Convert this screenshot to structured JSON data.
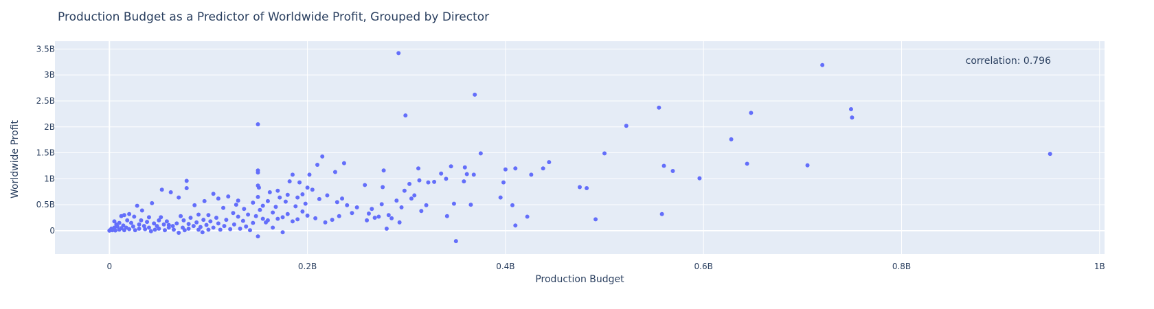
{
  "chart_data": {
    "type": "scatter",
    "title": "Production Budget as a Predictor of Worldwide Profit, Grouped by Director",
    "xlabel": "Production Budget",
    "ylabel": "Worldwide Profit",
    "xlim": [
      -55000000,
      1005000000
    ],
    "ylim": [
      -450000000,
      3650000000
    ],
    "x_ticks": [
      0,
      200000000,
      400000000,
      600000000,
      800000000,
      1000000000
    ],
    "x_tick_labels": [
      "0",
      "0.2B",
      "0.4B",
      "0.6B",
      "0.8B",
      "1B"
    ],
    "y_ticks": [
      0,
      500000000,
      1000000000,
      1500000000,
      2000000000,
      2500000000,
      3000000000,
      3500000000
    ],
    "y_tick_labels": [
      "0",
      "0.5B",
      "1B",
      "1.5B",
      "2B",
      "2.5B",
      "3B",
      "3.5B"
    ],
    "grid": true,
    "annotation": "correlation: 0.796",
    "colors": {
      "marker": "#636efa",
      "plot_bg": "#e5ecf6",
      "grid": "#ffffff",
      "text": "#2a3f5f"
    },
    "series": [
      {
        "points": [
          [
            0,
            2000000
          ],
          [
            1000000,
            15000000
          ],
          [
            2000000,
            40000000
          ],
          [
            3000000,
            10000000
          ],
          [
            4000000,
            30000000
          ],
          [
            5000000,
            60000000
          ],
          [
            5000000,
            180000000
          ],
          [
            6000000,
            5000000
          ],
          [
            7000000,
            120000000
          ],
          [
            8000000,
            80000000
          ],
          [
            10000000,
            20000000
          ],
          [
            10000000,
            150000000
          ],
          [
            12000000,
            280000000
          ],
          [
            12000000,
            50000000
          ],
          [
            14000000,
            100000000
          ],
          [
            15000000,
            300000000
          ],
          [
            15000000,
            10000000
          ],
          [
            17000000,
            60000000
          ],
          [
            18000000,
            200000000
          ],
          [
            20000000,
            30000000
          ],
          [
            20000000,
            320000000
          ],
          [
            22000000,
            150000000
          ],
          [
            24000000,
            80000000
          ],
          [
            25000000,
            270000000
          ],
          [
            26000000,
            10000000
          ],
          [
            28000000,
            480000000
          ],
          [
            30000000,
            120000000
          ],
          [
            30000000,
            40000000
          ],
          [
            32000000,
            200000000
          ],
          [
            33000000,
            390000000
          ],
          [
            35000000,
            90000000
          ],
          [
            36000000,
            30000000
          ],
          [
            38000000,
            170000000
          ],
          [
            40000000,
            260000000
          ],
          [
            40000000,
            60000000
          ],
          [
            42000000,
            -10000000
          ],
          [
            43000000,
            530000000
          ],
          [
            45000000,
            140000000
          ],
          [
            46000000,
            20000000
          ],
          [
            48000000,
            90000000
          ],
          [
            50000000,
            200000000
          ],
          [
            50000000,
            40000000
          ],
          [
            52000000,
            260000000
          ],
          [
            53000000,
            790000000
          ],
          [
            55000000,
            120000000
          ],
          [
            56000000,
            10000000
          ],
          [
            58000000,
            180000000
          ],
          [
            60000000,
            60000000
          ],
          [
            60000000,
            110000000
          ],
          [
            62000000,
            740000000
          ],
          [
            64000000,
            90000000
          ],
          [
            65000000,
            20000000
          ],
          [
            68000000,
            140000000
          ],
          [
            70000000,
            -40000000
          ],
          [
            70000000,
            640000000
          ],
          [
            72000000,
            280000000
          ],
          [
            74000000,
            60000000
          ],
          [
            75000000,
            200000000
          ],
          [
            76000000,
            10000000
          ],
          [
            78000000,
            960000000
          ],
          [
            78000000,
            820000000
          ],
          [
            80000000,
            130000000
          ],
          [
            80000000,
            40000000
          ],
          [
            82000000,
            250000000
          ],
          [
            85000000,
            90000000
          ],
          [
            86000000,
            490000000
          ],
          [
            88000000,
            160000000
          ],
          [
            90000000,
            20000000
          ],
          [
            90000000,
            310000000
          ],
          [
            92000000,
            70000000
          ],
          [
            94000000,
            -30000000
          ],
          [
            95000000,
            210000000
          ],
          [
            96000000,
            570000000
          ],
          [
            98000000,
            110000000
          ],
          [
            100000000,
            20000000
          ],
          [
            100000000,
            300000000
          ],
          [
            102000000,
            180000000
          ],
          [
            105000000,
            710000000
          ],
          [
            105000000,
            60000000
          ],
          [
            108000000,
            250000000
          ],
          [
            110000000,
            140000000
          ],
          [
            110000000,
            620000000
          ],
          [
            112000000,
            20000000
          ],
          [
            115000000,
            440000000
          ],
          [
            116000000,
            90000000
          ],
          [
            118000000,
            210000000
          ],
          [
            120000000,
            660000000
          ],
          [
            122000000,
            30000000
          ],
          [
            125000000,
            340000000
          ],
          [
            126000000,
            120000000
          ],
          [
            128000000,
            500000000
          ],
          [
            130000000,
            270000000
          ],
          [
            130000000,
            580000000
          ],
          [
            132000000,
            40000000
          ],
          [
            135000000,
            190000000
          ],
          [
            136000000,
            420000000
          ],
          [
            138000000,
            80000000
          ],
          [
            140000000,
            310000000
          ],
          [
            142000000,
            10000000
          ],
          [
            145000000,
            150000000
          ],
          [
            145000000,
            540000000
          ],
          [
            148000000,
            280000000
          ],
          [
            150000000,
            2050000000
          ],
          [
            150000000,
            1160000000
          ],
          [
            150000000,
            1120000000
          ],
          [
            150000000,
            -110000000
          ],
          [
            150000000,
            650000000
          ],
          [
            150000000,
            870000000
          ],
          [
            151000000,
            830000000
          ],
          [
            152000000,
            400000000
          ],
          [
            155000000,
            230000000
          ],
          [
            155000000,
            480000000
          ],
          [
            158000000,
            160000000
          ],
          [
            160000000,
            570000000
          ],
          [
            160000000,
            200000000
          ],
          [
            162000000,
            740000000
          ],
          [
            165000000,
            60000000
          ],
          [
            165000000,
            350000000
          ],
          [
            168000000,
            460000000
          ],
          [
            170000000,
            230000000
          ],
          [
            170000000,
            770000000
          ],
          [
            172000000,
            640000000
          ],
          [
            175000000,
            260000000
          ],
          [
            175000000,
            -30000000
          ],
          [
            178000000,
            560000000
          ],
          [
            180000000,
            690000000
          ],
          [
            180000000,
            320000000
          ],
          [
            182000000,
            950000000
          ],
          [
            185000000,
            180000000
          ],
          [
            185000000,
            1080000000
          ],
          [
            188000000,
            470000000
          ],
          [
            190000000,
            220000000
          ],
          [
            190000000,
            640000000
          ],
          [
            192000000,
            930000000
          ],
          [
            195000000,
            700000000
          ],
          [
            195000000,
            370000000
          ],
          [
            198000000,
            520000000
          ],
          [
            200000000,
            830000000
          ],
          [
            200000000,
            290000000
          ],
          [
            202000000,
            1080000000
          ],
          [
            205000000,
            790000000
          ],
          [
            208000000,
            240000000
          ],
          [
            210000000,
            1270000000
          ],
          [
            212000000,
            610000000
          ],
          [
            215000000,
            1430000000
          ],
          [
            218000000,
            160000000
          ],
          [
            220000000,
            680000000
          ],
          [
            225000000,
            210000000
          ],
          [
            228000000,
            1130000000
          ],
          [
            230000000,
            550000000
          ],
          [
            232000000,
            280000000
          ],
          [
            235000000,
            620000000
          ],
          [
            237000000,
            1300000000
          ],
          [
            240000000,
            490000000
          ],
          [
            245000000,
            340000000
          ],
          [
            250000000,
            450000000
          ],
          [
            258000000,
            880000000
          ],
          [
            260000000,
            200000000
          ],
          [
            262000000,
            330000000
          ],
          [
            265000000,
            420000000
          ],
          [
            268000000,
            250000000
          ],
          [
            272000000,
            270000000
          ],
          [
            275000000,
            510000000
          ],
          [
            276000000,
            840000000
          ],
          [
            277000000,
            1160000000
          ],
          [
            280000000,
            40000000
          ],
          [
            282000000,
            300000000
          ],
          [
            285000000,
            240000000
          ],
          [
            290000000,
            580000000
          ],
          [
            292000000,
            3420000000
          ],
          [
            293000000,
            160000000
          ],
          [
            295000000,
            450000000
          ],
          [
            298000000,
            770000000
          ],
          [
            299000000,
            2220000000
          ],
          [
            303000000,
            900000000
          ],
          [
            305000000,
            620000000
          ],
          [
            308000000,
            680000000
          ],
          [
            312000000,
            1200000000
          ],
          [
            313000000,
            970000000
          ],
          [
            315000000,
            380000000
          ],
          [
            320000000,
            490000000
          ],
          [
            322000000,
            930000000
          ],
          [
            328000000,
            940000000
          ],
          [
            335000000,
            1100000000
          ],
          [
            340000000,
            1000000000
          ],
          [
            341000000,
            280000000
          ],
          [
            345000000,
            1240000000
          ],
          [
            348000000,
            520000000
          ],
          [
            350000000,
            -200000000
          ],
          [
            358000000,
            950000000
          ],
          [
            359000000,
            1220000000
          ],
          [
            361000000,
            1090000000
          ],
          [
            365000000,
            500000000
          ],
          [
            368000000,
            1080000000
          ],
          [
            369000000,
            2620000000
          ],
          [
            375000000,
            1490000000
          ],
          [
            395000000,
            640000000
          ],
          [
            398000000,
            930000000
          ],
          [
            400000000,
            1180000000
          ],
          [
            407000000,
            490000000
          ],
          [
            410000000,
            100000000
          ],
          [
            410000000,
            1200000000
          ],
          [
            422000000,
            270000000
          ],
          [
            426000000,
            1080000000
          ],
          [
            438000000,
            1200000000
          ],
          [
            444000000,
            1320000000
          ],
          [
            475000000,
            840000000
          ],
          [
            482000000,
            820000000
          ],
          [
            491000000,
            220000000
          ],
          [
            500000000,
            1490000000
          ],
          [
            522000000,
            2020000000
          ],
          [
            555000000,
            2370000000
          ],
          [
            558000000,
            320000000
          ],
          [
            560000000,
            1250000000
          ],
          [
            569000000,
            1150000000
          ],
          [
            596000000,
            1010000000
          ],
          [
            628000000,
            1760000000
          ],
          [
            644000000,
            1290000000
          ],
          [
            648000000,
            2270000000
          ],
          [
            705000000,
            1260000000
          ],
          [
            720000000,
            3190000000
          ],
          [
            749000000,
            2340000000
          ],
          [
            750000000,
            2180000000
          ],
          [
            950000000,
            1480000000
          ]
        ]
      }
    ]
  }
}
